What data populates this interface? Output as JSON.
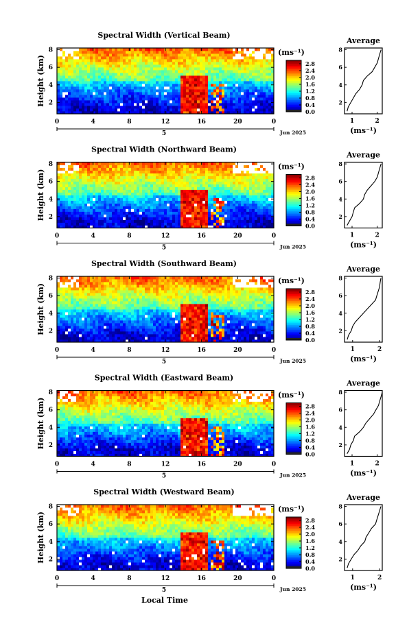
{
  "figure": {
    "xlabel": "Local Time",
    "colorbar_unit": "(ms⁻¹)",
    "date_label": "Jun 2025",
    "day_label": "5",
    "avg_title": "Average",
    "avg_xlabel": "(ms⁻¹)",
    "ylabel": "Height (km)"
  },
  "chart_data": [
    {
      "type": "heatmap",
      "title": "Spectral Width (Vertical Beam)",
      "ylabel": "Height (km)",
      "x_ticks": [
        "0",
        "4",
        "8",
        "12",
        "16",
        "20",
        "0"
      ],
      "y_ticks": [
        "2",
        "4",
        "6",
        "8"
      ],
      "xlim": [
        0,
        24
      ],
      "ylim": [
        0.7,
        8.2
      ],
      "colorbar": {
        "ticks": [
          "0.0",
          "0.4",
          "0.8",
          "1.2",
          "1.6",
          "2.0",
          "2.4",
          "2.8"
        ],
        "range": [
          0,
          3.0
        ]
      },
      "profile": {
        "title": "Average",
        "x_ticks": [
          "1",
          "2"
        ],
        "xlim": [
          0.7,
          2.2
        ],
        "heights": [
          1.0,
          1.5,
          2.0,
          2.5,
          3.0,
          3.5,
          4.0,
          4.5,
          5.0,
          5.5,
          6.0,
          6.5,
          7.0,
          7.5,
          8.0
        ],
        "values": [
          0.8,
          0.85,
          0.95,
          1.05,
          1.15,
          1.3,
          1.4,
          1.45,
          1.6,
          1.8,
          1.9,
          2.0,
          2.05,
          2.1,
          2.15
        ]
      }
    },
    {
      "type": "heatmap",
      "title": "Spectral Width (Northward Beam)",
      "ylabel": "Height (km)",
      "x_ticks": [
        "0",
        "4",
        "8",
        "12",
        "16",
        "20",
        "0"
      ],
      "y_ticks": [
        "2",
        "4",
        "6",
        "8"
      ],
      "xlim": [
        0,
        24
      ],
      "ylim": [
        0.7,
        8.2
      ],
      "colorbar": {
        "ticks": [
          "0.0",
          "0.4",
          "0.8",
          "1.2",
          "1.6",
          "2.0",
          "2.4",
          "2.8"
        ],
        "range": [
          0,
          3.0
        ]
      },
      "profile": {
        "title": "Average",
        "x_ticks": [
          "1",
          "2"
        ],
        "xlim": [
          0.7,
          2.2
        ],
        "heights": [
          1.0,
          1.5,
          2.0,
          2.5,
          3.0,
          3.5,
          4.0,
          4.5,
          5.0,
          5.5,
          6.0,
          6.5,
          7.0,
          7.5,
          8.0
        ],
        "values": [
          0.8,
          0.9,
          1.0,
          1.05,
          1.1,
          1.3,
          1.45,
          1.5,
          1.6,
          1.75,
          1.9,
          2.0,
          2.05,
          2.1,
          2.15
        ]
      }
    },
    {
      "type": "heatmap",
      "title": "Spectral Width (Southward Beam)",
      "ylabel": "Height (km)",
      "x_ticks": [
        "0",
        "4",
        "8",
        "12",
        "16",
        "20",
        "0"
      ],
      "y_ticks": [
        "2",
        "4",
        "6",
        "8"
      ],
      "xlim": [
        0,
        24
      ],
      "ylim": [
        0.7,
        8.2
      ],
      "colorbar": {
        "ticks": [
          "0.0",
          "0.4",
          "0.8",
          "1.2",
          "1.6",
          "2.0",
          "2.4",
          "2.8"
        ],
        "range": [
          0,
          3.0
        ]
      },
      "profile": {
        "title": "Average",
        "x_ticks": [
          "1",
          "2"
        ],
        "xlim": [
          0.7,
          2.1
        ],
        "heights": [
          1.0,
          1.5,
          2.0,
          2.5,
          3.0,
          3.5,
          4.0,
          4.5,
          5.0,
          5.5,
          6.0,
          6.5,
          7.0,
          7.5,
          8.0
        ],
        "values": [
          0.8,
          0.85,
          0.95,
          1.0,
          1.1,
          1.25,
          1.4,
          1.55,
          1.7,
          1.85,
          1.9,
          1.95,
          2.0,
          2.02,
          2.05
        ]
      }
    },
    {
      "type": "heatmap",
      "title": "Spectral Width (Eastward Beam)",
      "ylabel": "Height (km)",
      "x_ticks": [
        "0",
        "4",
        "8",
        "12",
        "16",
        "20",
        "0"
      ],
      "y_ticks": [
        "2",
        "4",
        "6",
        "8"
      ],
      "xlim": [
        0,
        24
      ],
      "ylim": [
        0.7,
        8.2
      ],
      "colorbar": {
        "ticks": [
          "0.0",
          "0.4",
          "0.8",
          "1.2",
          "1.6",
          "2.0",
          "2.4",
          "2.8"
        ],
        "range": [
          0,
          3.0
        ]
      },
      "profile": {
        "title": "Average",
        "x_ticks": [
          "1",
          "2"
        ],
        "xlim": [
          0.7,
          2.2
        ],
        "heights": [
          1.0,
          1.5,
          2.0,
          2.5,
          3.0,
          3.5,
          4.0,
          4.5,
          5.0,
          5.5,
          6.0,
          6.5,
          7.0,
          7.5,
          8.0
        ],
        "values": [
          0.8,
          0.9,
          0.95,
          1.05,
          1.1,
          1.3,
          1.45,
          1.55,
          1.7,
          1.85,
          1.95,
          2.05,
          2.1,
          2.15,
          2.2
        ]
      }
    },
    {
      "type": "heatmap",
      "title": "Spectral Width (Westward Beam)",
      "ylabel": "Height (km)",
      "x_ticks": [
        "0",
        "4",
        "8",
        "12",
        "16",
        "20",
        "0"
      ],
      "y_ticks": [
        "2",
        "4",
        "6",
        "8"
      ],
      "xlim": [
        0,
        24
      ],
      "ylim": [
        0.7,
        8.2
      ],
      "colorbar": {
        "ticks": [
          "0.0",
          "0.4",
          "0.8",
          "1.2",
          "1.6",
          "2.0",
          "2.4",
          "2.8"
        ],
        "range": [
          0,
          3.0
        ]
      },
      "profile": {
        "title": "Average",
        "x_ticks": [
          "1",
          "2"
        ],
        "xlim": [
          0.7,
          2.1
        ],
        "heights": [
          1.0,
          1.5,
          2.0,
          2.5,
          3.0,
          3.5,
          4.0,
          4.5,
          5.0,
          5.5,
          6.0,
          6.5,
          7.0,
          7.5,
          8.0
        ],
        "values": [
          0.8,
          0.85,
          0.95,
          1.05,
          1.2,
          1.3,
          1.45,
          1.5,
          1.6,
          1.7,
          1.85,
          1.9,
          1.95,
          2.0,
          2.05
        ]
      }
    }
  ]
}
